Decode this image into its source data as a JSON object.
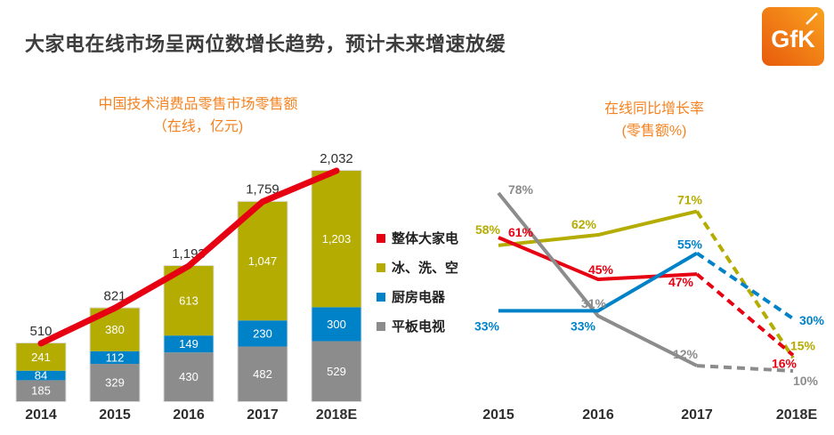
{
  "header": {
    "title": "大家电在线市场呈两位数增长趋势，预计未来增速放缓",
    "logo_text": "GfK"
  },
  "colors": {
    "orange": "#f5821f",
    "red": "#e60012",
    "olive": "#b4ac00",
    "blue": "#0082c9",
    "gray": "#8c8c8c",
    "title_text": "#3d3d3d",
    "axis_text": "#2e2e2e",
    "segment_text": "#ffffff",
    "logo_gradient_light": "#f7941d",
    "logo_gradient_dark": "#e84f0e"
  },
  "legend": {
    "items": [
      {
        "label": "整体大家电",
        "color": "red"
      },
      {
        "label": "冰、洗、空",
        "color": "olive"
      },
      {
        "label": "厨房电器",
        "color": "blue"
      },
      {
        "label": "平板电视",
        "color": "gray"
      }
    ]
  },
  "chart_data": [
    {
      "type": "bar",
      "stacked": true,
      "title": "中国技术消费品零售市场零售额",
      "subtitle": "（在线，亿元)",
      "categories": [
        "2014",
        "2015",
        "2016",
        "2017",
        "2018E"
      ],
      "series": [
        {
          "name": "平板电视",
          "color": "gray",
          "values": [
            185,
            329,
            430,
            482,
            529
          ],
          "display": [
            "185",
            "329",
            "430",
            "482",
            "529"
          ]
        },
        {
          "name": "厨房电器",
          "color": "blue",
          "values": [
            84,
            112,
            149,
            230,
            300
          ],
          "display": [
            "84",
            "112",
            "149",
            "230",
            "300"
          ]
        },
        {
          "name": "冰、洗、空",
          "color": "olive",
          "values": [
            241,
            380,
            613,
            1047,
            1203
          ],
          "display": [
            "241",
            "380",
            "613",
            "1,047",
            "1,203"
          ]
        }
      ],
      "totals": [
        510,
        821,
        1193,
        1759,
        2032
      ],
      "totals_display": [
        "510",
        "821",
        "1,193",
        "1,759",
        "2,032"
      ],
      "trend_line": {
        "name": "整体大家电",
        "color": "red"
      },
      "ylim": [
        0,
        2100
      ],
      "grid": false
    },
    {
      "type": "line",
      "title": "在线同比增长率",
      "subtitle": "(零售额%)",
      "categories": [
        "2015",
        "2016",
        "2017",
        "2018E"
      ],
      "forecast_from_index": 2,
      "ylim": [
        0,
        85
      ],
      "grid": false,
      "series": [
        {
          "name": "整体大家电",
          "color": "red",
          "values": [
            61,
            45,
            47,
            16
          ],
          "labels": [
            "61%",
            "45%",
            "47%",
            "16%"
          ]
        },
        {
          "name": "冰、洗、空",
          "color": "olive",
          "values": [
            58,
            62,
            71,
            15
          ],
          "labels": [
            "58%",
            "62%",
            "71%",
            "15%"
          ]
        },
        {
          "name": "厨房电器",
          "color": "blue",
          "values": [
            33,
            33,
            55,
            30
          ],
          "labels": [
            "33%",
            "33%",
            "55%",
            "30%"
          ]
        },
        {
          "name": "平板电视",
          "color": "gray",
          "values": [
            78,
            31,
            12,
            10
          ],
          "labels": [
            "78%",
            "31%",
            "12%",
            "10%"
          ]
        }
      ]
    }
  ]
}
